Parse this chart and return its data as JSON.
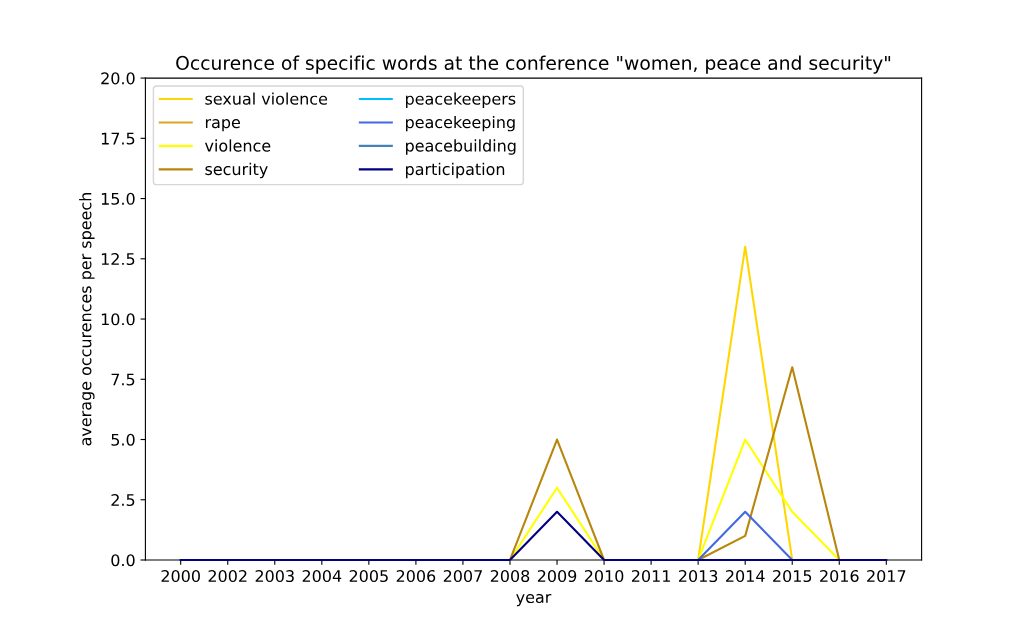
{
  "chart_data": {
    "type": "line",
    "title": "Occurence of specific words at the conference \"women, peace and security\"",
    "xlabel": "year",
    "ylabel": "average occurences per speech",
    "categories": [
      "2000",
      "2002",
      "2003",
      "2004",
      "2005",
      "2006",
      "2007",
      "2008",
      "2009",
      "2010",
      "2011",
      "2013",
      "2014",
      "2015",
      "2016",
      "2017"
    ],
    "series": [
      {
        "name": "sexual violence",
        "color": "#ffd700",
        "values": [
          null,
          null,
          null,
          null,
          null,
          null,
          null,
          null,
          null,
          null,
          null,
          0,
          13,
          0,
          null,
          null
        ]
      },
      {
        "name": "rape",
        "color": "#daa520",
        "values": [
          null,
          null,
          null,
          null,
          null,
          null,
          null,
          null,
          null,
          null,
          null,
          null,
          null,
          null,
          null,
          null
        ]
      },
      {
        "name": "violence",
        "color": "#ffff00",
        "values": [
          null,
          null,
          null,
          null,
          null,
          null,
          null,
          0,
          3,
          0,
          null,
          0,
          5,
          2,
          0,
          null
        ]
      },
      {
        "name": "security",
        "color": "#b8860b",
        "values": [
          null,
          null,
          null,
          null,
          null,
          null,
          null,
          0,
          5,
          0,
          null,
          0,
          1,
          8,
          0,
          null
        ]
      },
      {
        "name": "peacekeepers",
        "color": "#00bfff",
        "values": [
          null,
          null,
          null,
          null,
          null,
          null,
          null,
          null,
          null,
          null,
          null,
          null,
          null,
          null,
          null,
          null
        ]
      },
      {
        "name": "peacekeeping",
        "color": "#4169e1",
        "values": [
          null,
          null,
          null,
          null,
          null,
          null,
          null,
          null,
          null,
          null,
          null,
          0,
          2,
          0,
          null,
          null
        ]
      },
      {
        "name": "peacebuilding",
        "color": "#4682b4",
        "values": [
          null,
          null,
          null,
          null,
          null,
          null,
          null,
          null,
          null,
          null,
          null,
          null,
          null,
          null,
          null,
          null
        ]
      },
      {
        "name": "participation",
        "color": "#000080",
        "values": [
          0,
          0,
          0,
          0,
          0,
          0,
          0,
          0,
          2,
          0,
          0,
          0,
          0,
          0,
          0,
          0
        ]
      }
    ],
    "ylim": [
      0,
      20
    ],
    "yticks": [
      {
        "value": 0,
        "label": "0.0"
      },
      {
        "value": 2.5,
        "label": "2.5"
      },
      {
        "value": 5,
        "label": "5.0"
      },
      {
        "value": 7.5,
        "label": "7.5"
      },
      {
        "value": 10,
        "label": "10.0"
      },
      {
        "value": 12.5,
        "label": "12.5"
      },
      {
        "value": 15,
        "label": "15.0"
      },
      {
        "value": 17.5,
        "label": "17.5"
      },
      {
        "value": 20,
        "label": "20.0"
      }
    ],
    "grid": false,
    "legend": "top left",
    "marker": "none",
    "line_style": "solid"
  }
}
